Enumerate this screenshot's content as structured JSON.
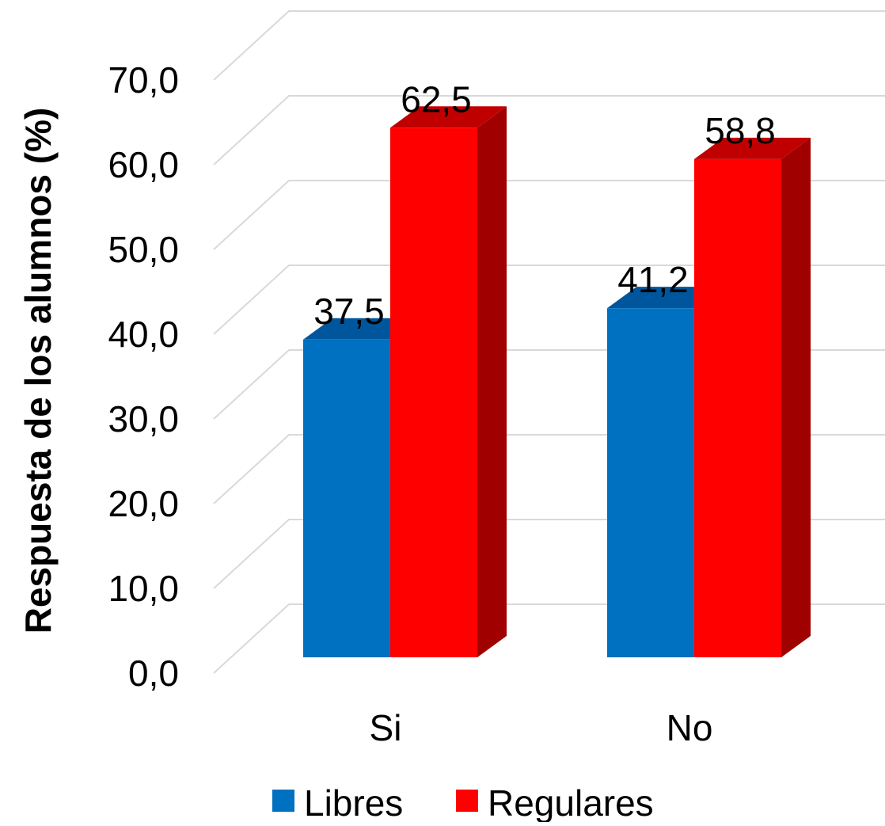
{
  "chart_data": {
    "type": "bar",
    "categories": [
      "Si",
      "No"
    ],
    "series": [
      {
        "name": "Libres",
        "values": [
          37.5,
          41.2
        ],
        "color": "#0070c0",
        "top_color": "#00569c",
        "side_color": "#00457d",
        "labels": [
          "37,5",
          "41,2"
        ]
      },
      {
        "name": "Regulares",
        "values": [
          62.5,
          58.8
        ],
        "color": "#ff0000",
        "top_color": "#c00000",
        "side_color": "#a00000",
        "labels": [
          "62,5",
          "58,8"
        ]
      }
    ],
    "ylabel": "Respuesta de los alumnos (%)",
    "xlabel": "",
    "ylim": [
      0,
      70
    ],
    "ytick_values": [
      0,
      10,
      20,
      30,
      40,
      50,
      60,
      70
    ],
    "ytick_labels": [
      "0,0",
      "10,0",
      "20,0",
      "30,0",
      "40,0",
      "50,0",
      "60,0",
      "70,0"
    ],
    "grid": true,
    "legend_position": "bottom",
    "style": "3d-clustered-column"
  }
}
